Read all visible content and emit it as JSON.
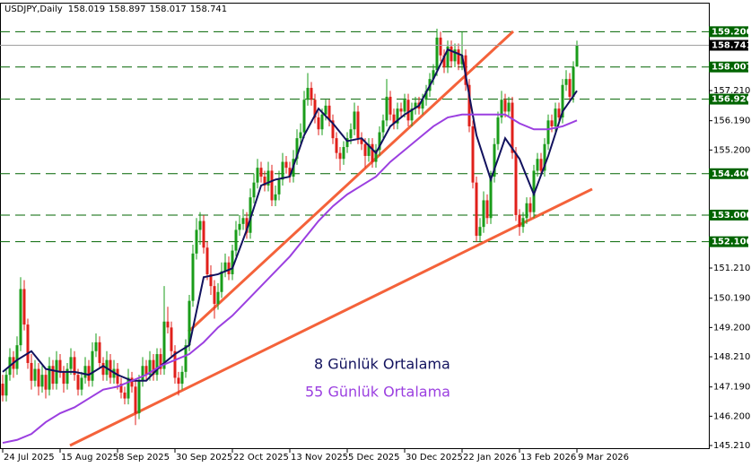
{
  "chart_data": {
    "type": "candlestick",
    "symbol": "USDJPY,Daily",
    "colors": {
      "up": "#1a9c1a",
      "down": "#e0201b",
      "level": "#006400",
      "price_line": "#a0a0a0",
      "trendline": "#f4623a"
    },
    "xlim": [
      -0.75,
      196.75
    ],
    "ylim": [
      145.12,
      160.15
    ],
    "xticks": [
      {
        "value": 0,
        "label": "24 Jul 2025"
      },
      {
        "value": 16,
        "label": "15 Aug 2025"
      },
      {
        "value": 32,
        "label": "8 Sep 2025"
      },
      {
        "value": 48,
        "label": "30 Sep 2025"
      },
      {
        "value": 64,
        "label": "22 Oct 2025"
      },
      {
        "value": 80,
        "label": "13 Nov 2025"
      },
      {
        "value": 96,
        "label": "5 Dec 2025"
      },
      {
        "value": 112,
        "label": "30 Dec 2025"
      },
      {
        "value": 128,
        "label": "22 Jan 2026"
      },
      {
        "value": 144,
        "label": "13 Feb 2026"
      },
      {
        "value": 160,
        "label": "9 Mar 2026"
      }
    ],
    "yticks": [
      {
        "value": 145.21,
        "label": "145.210"
      },
      {
        "value": 146.2,
        "label": "146.200"
      },
      {
        "value": 147.19,
        "label": "147.190"
      },
      {
        "value": 148.21,
        "label": "148.210"
      },
      {
        "value": 149.2,
        "label": "149.200"
      },
      {
        "value": 150.19,
        "label": "150.190"
      },
      {
        "value": 151.21,
        "label": "151.210"
      },
      {
        "value": 155.2,
        "label": "155.200"
      },
      {
        "value": 156.19,
        "label": "156.190"
      },
      {
        "value": 157.21,
        "label": "157.210"
      }
    ],
    "levels": [
      {
        "value": 159.2,
        "label": "159.200"
      },
      {
        "value": 158.007,
        "label": "158.007"
      },
      {
        "value": 156.92,
        "label": "156.920"
      },
      {
        "value": 154.4,
        "label": "154.400"
      },
      {
        "value": 153.0,
        "label": "153.000"
      },
      {
        "value": 152.1,
        "label": "152.100"
      }
    ],
    "trendlines": [
      {
        "x": [
          51.75,
          142.25
        ],
        "y": [
          149.06,
          159.21
        ]
      },
      {
        "x": [
          18.75,
          164.25
        ],
        "y": [
          145.21,
          153.88
        ]
      }
    ],
    "ohlc": [
      [
        147.3,
        147.6,
        146.7,
        146.9
      ],
      [
        146.9,
        147.8,
        146.7,
        147.6
      ],
      [
        147.6,
        148.5,
        147.4,
        148.2
      ],
      [
        148.2,
        148.4,
        147.5,
        147.8
      ],
      [
        147.8,
        148.9,
        147.6,
        148.6
      ],
      [
        148.6,
        150.9,
        148.4,
        150.5
      ],
      [
        150.5,
        150.8,
        149.1,
        149.3
      ],
      [
        149.3,
        149.5,
        147.8,
        148.0
      ],
      [
        148.0,
        148.3,
        147.1,
        147.4
      ],
      [
        147.4,
        148.1,
        147.2,
        147.8
      ],
      [
        147.8,
        148.0,
        146.9,
        147.2
      ],
      [
        147.2,
        147.9,
        147.0,
        147.6
      ],
      [
        147.6,
        147.8,
        146.8,
        147.1
      ],
      [
        147.1,
        148.2,
        146.9,
        147.9
      ],
      [
        147.9,
        148.1,
        147.1,
        147.3
      ],
      [
        147.3,
        148.4,
        147.1,
        148.1
      ],
      [
        148.1,
        148.3,
        147.5,
        147.7
      ],
      [
        147.7,
        147.9,
        147.0,
        147.3
      ],
      [
        147.3,
        148.0,
        147.1,
        147.8
      ],
      [
        147.8,
        148.5,
        147.6,
        148.2
      ],
      [
        148.2,
        148.4,
        147.4,
        147.6
      ],
      [
        147.6,
        147.8,
        146.9,
        147.1
      ],
      [
        147.1,
        147.7,
        146.9,
        147.5
      ],
      [
        147.5,
        148.2,
        147.3,
        147.9
      ],
      [
        147.9,
        148.1,
        147.2,
        147.4
      ],
      [
        147.4,
        148.7,
        147.2,
        148.4
      ],
      [
        148.4,
        149.0,
        148.2,
        148.7
      ],
      [
        148.7,
        148.9,
        147.8,
        148.0
      ],
      [
        148.0,
        148.2,
        147.4,
        147.6
      ],
      [
        147.6,
        148.4,
        147.4,
        148.1
      ],
      [
        148.1,
        148.3,
        147.3,
        147.5
      ],
      [
        147.5,
        148.1,
        147.3,
        147.8
      ],
      [
        147.8,
        148.0,
        147.1,
        147.3
      ],
      [
        147.3,
        147.5,
        146.8,
        147.0
      ],
      [
        147.0,
        147.2,
        146.6,
        146.8
      ],
      [
        146.8,
        147.8,
        146.6,
        147.5
      ],
      [
        147.5,
        147.7,
        147.0,
        147.2
      ],
      [
        147.2,
        147.4,
        145.9,
        146.3
      ],
      [
        146.3,
        147.6,
        146.1,
        147.4
      ],
      [
        147.4,
        148.2,
        147.2,
        147.9
      ],
      [
        147.9,
        148.1,
        147.4,
        147.6
      ],
      [
        147.6,
        148.4,
        147.4,
        148.1
      ],
      [
        148.1,
        148.3,
        147.4,
        147.6
      ],
      [
        147.6,
        148.5,
        147.4,
        148.3
      ],
      [
        148.3,
        148.5,
        147.6,
        147.8
      ],
      [
        147.8,
        150.6,
        147.6,
        149.4
      ],
      [
        149.4,
        149.9,
        149.0,
        149.2
      ],
      [
        149.2,
        149.4,
        148.2,
        148.4
      ],
      [
        148.4,
        148.6,
        147.3,
        147.5
      ],
      [
        147.5,
        147.7,
        146.9,
        147.3
      ],
      [
        147.3,
        147.9,
        147.1,
        147.7
      ],
      [
        147.7,
        148.8,
        147.5,
        148.6
      ],
      [
        148.6,
        150.3,
        148.4,
        150.1
      ],
      [
        150.1,
        152.0,
        149.9,
        151.7
      ],
      [
        151.7,
        152.9,
        151.5,
        152.5
      ],
      [
        152.5,
        153.1,
        152.0,
        152.8
      ],
      [
        152.8,
        153.0,
        151.7,
        151.9
      ],
      [
        151.9,
        152.1,
        150.8,
        151.0
      ],
      [
        151.0,
        151.3,
        150.3,
        150.6
      ],
      [
        150.6,
        150.8,
        149.5,
        150.0
      ],
      [
        150.0,
        150.7,
        149.8,
        150.4
      ],
      [
        150.4,
        151.4,
        150.2,
        151.1
      ],
      [
        151.1,
        151.7,
        150.9,
        151.4
      ],
      [
        151.4,
        151.6,
        150.8,
        151.0
      ],
      [
        151.0,
        152.0,
        150.8,
        151.8
      ],
      [
        151.8,
        152.8,
        151.6,
        152.5
      ],
      [
        152.5,
        153.0,
        152.3,
        152.7
      ],
      [
        152.7,
        153.2,
        152.5,
        152.9
      ],
      [
        152.9,
        153.1,
        152.2,
        152.4
      ],
      [
        152.4,
        153.9,
        152.2,
        153.6
      ],
      [
        153.6,
        154.4,
        153.4,
        154.1
      ],
      [
        154.1,
        154.9,
        153.9,
        154.6
      ],
      [
        154.6,
        154.8,
        154.1,
        154.3
      ],
      [
        154.3,
        154.5,
        153.8,
        154.0
      ],
      [
        154.0,
        154.8,
        153.8,
        154.5
      ],
      [
        154.5,
        154.7,
        153.3,
        153.5
      ],
      [
        153.5,
        154.0,
        153.3,
        153.7
      ],
      [
        153.7,
        154.5,
        153.5,
        154.2
      ],
      [
        154.2,
        155.1,
        154.0,
        154.8
      ],
      [
        154.8,
        155.0,
        154.4,
        154.6
      ],
      [
        154.6,
        154.8,
        154.1,
        154.3
      ],
      [
        154.3,
        155.2,
        154.1,
        154.9
      ],
      [
        154.9,
        155.9,
        154.7,
        155.6
      ],
      [
        155.6,
        156.1,
        155.4,
        155.8
      ],
      [
        155.8,
        157.2,
        155.6,
        156.9
      ],
      [
        156.9,
        157.8,
        156.7,
        157.3
      ],
      [
        157.3,
        157.5,
        156.7,
        156.9
      ],
      [
        156.9,
        157.1,
        156.1,
        156.3
      ],
      [
        156.3,
        156.5,
        155.7,
        155.9
      ],
      [
        155.9,
        156.6,
        155.7,
        156.4
      ],
      [
        156.4,
        156.9,
        156.2,
        156.7
      ],
      [
        156.7,
        156.9,
        156.0,
        156.2
      ],
      [
        156.2,
        156.4,
        155.4,
        155.6
      ],
      [
        155.6,
        155.8,
        154.9,
        155.1
      ],
      [
        155.1,
        155.3,
        154.5,
        154.9
      ],
      [
        154.9,
        155.5,
        154.7,
        155.3
      ],
      [
        155.3,
        155.8,
        155.1,
        155.6
      ],
      [
        155.6,
        156.1,
        155.4,
        155.9
      ],
      [
        155.9,
        156.8,
        155.7,
        156.5
      ],
      [
        156.5,
        156.7,
        155.4,
        155.6
      ],
      [
        155.6,
        155.8,
        155.2,
        155.4
      ],
      [
        155.4,
        155.6,
        154.6,
        155.0
      ],
      [
        155.0,
        155.6,
        154.8,
        155.4
      ],
      [
        155.4,
        155.6,
        154.6,
        154.8
      ],
      [
        154.8,
        155.4,
        154.6,
        155.2
      ],
      [
        155.2,
        156.0,
        155.0,
        155.8
      ],
      [
        155.8,
        156.4,
        155.6,
        156.2
      ],
      [
        156.2,
        157.6,
        156.0,
        157.0
      ],
      [
        157.0,
        157.2,
        156.2,
        156.4
      ],
      [
        156.4,
        156.6,
        155.9,
        156.1
      ],
      [
        156.1,
        156.8,
        155.9,
        156.6
      ],
      [
        156.6,
        156.8,
        156.3,
        156.5
      ],
      [
        156.5,
        157.1,
        156.3,
        156.9
      ],
      [
        156.9,
        157.1,
        156.0,
        156.2
      ],
      [
        156.2,
        156.8,
        156.0,
        156.6
      ],
      [
        156.6,
        157.0,
        156.4,
        156.8
      ],
      [
        156.8,
        157.0,
        156.4,
        156.6
      ],
      [
        156.6,
        157.1,
        156.4,
        156.9
      ],
      [
        156.9,
        157.4,
        156.7,
        157.2
      ],
      [
        157.2,
        157.8,
        157.0,
        157.6
      ],
      [
        157.6,
        158.1,
        157.4,
        157.9
      ],
      [
        157.9,
        159.3,
        157.7,
        159.0
      ],
      [
        159.0,
        159.2,
        158.2,
        158.4
      ],
      [
        158.4,
        158.6,
        157.8,
        158.0
      ],
      [
        158.0,
        158.9,
        157.8,
        158.7
      ],
      [
        158.7,
        158.9,
        158.0,
        158.2
      ],
      [
        158.2,
        158.8,
        158.0,
        158.6
      ],
      [
        158.6,
        158.8,
        157.9,
        158.1
      ],
      [
        158.1,
        159.2,
        157.9,
        158.4
      ],
      [
        158.4,
        158.6,
        157.2,
        157.4
      ],
      [
        157.4,
        157.6,
        155.8,
        156.0
      ],
      [
        156.0,
        156.2,
        153.9,
        154.1
      ],
      [
        154.1,
        154.3,
        152.1,
        152.3
      ],
      [
        152.3,
        152.9,
        152.1,
        152.6
      ],
      [
        152.6,
        153.8,
        152.4,
        153.5
      ],
      [
        153.5,
        153.7,
        152.7,
        152.9
      ],
      [
        152.9,
        154.5,
        152.7,
        154.3
      ],
      [
        154.3,
        155.6,
        154.1,
        155.4
      ],
      [
        155.4,
        156.5,
        155.2,
        156.3
      ],
      [
        156.3,
        157.2,
        156.1,
        156.9
      ],
      [
        156.9,
        157.1,
        156.3,
        156.5
      ],
      [
        156.5,
        157.0,
        156.3,
        156.8
      ],
      [
        156.8,
        157.0,
        154.9,
        155.1
      ],
      [
        155.1,
        155.3,
        152.8,
        153.0
      ],
      [
        153.0,
        153.2,
        152.3,
        152.6
      ],
      [
        152.6,
        153.1,
        152.4,
        152.9
      ],
      [
        152.9,
        153.6,
        152.7,
        153.4
      ],
      [
        153.4,
        153.6,
        152.9,
        153.1
      ],
      [
        153.1,
        154.7,
        152.9,
        154.5
      ],
      [
        154.5,
        155.1,
        154.3,
        154.9
      ],
      [
        154.9,
        155.1,
        154.3,
        154.5
      ],
      [
        154.5,
        155.6,
        154.3,
        155.4
      ],
      [
        155.4,
        156.4,
        155.2,
        156.2
      ],
      [
        156.2,
        156.4,
        155.8,
        156.0
      ],
      [
        156.0,
        156.8,
        155.8,
        156.6
      ],
      [
        156.6,
        156.8,
        156.1,
        156.3
      ],
      [
        156.3,
        157.6,
        156.1,
        157.4
      ],
      [
        157.4,
        157.9,
        157.2,
        157.6
      ],
      [
        157.6,
        157.8,
        156.8,
        157.0
      ],
      [
        157.0,
        158.2,
        156.8,
        158.0
      ],
      [
        158.019,
        158.897,
        158.017,
        158.741
      ]
    ],
    "series": [
      {
        "name": "8 Günlük Ortalama",
        "color": "#12125e",
        "x": [
          0,
          4,
          8,
          12,
          16,
          20,
          24,
          28,
          32,
          36,
          40,
          44,
          48,
          52,
          56,
          60,
          64,
          68,
          72,
          76,
          80,
          84,
          88,
          92,
          96,
          100,
          104,
          108,
          112,
          116,
          120,
          124,
          128,
          132,
          136,
          140,
          144,
          148,
          152,
          156,
          160
        ],
        "values": [
          147.7,
          148.1,
          148.4,
          147.8,
          147.7,
          147.7,
          147.6,
          147.9,
          147.6,
          147.4,
          147.4,
          147.9,
          148.3,
          148.6,
          150.9,
          151.0,
          151.2,
          152.5,
          154.0,
          154.2,
          154.3,
          155.7,
          156.6,
          156.1,
          155.5,
          155.6,
          155.1,
          156.0,
          156.4,
          156.7,
          157.6,
          158.6,
          158.4,
          155.7,
          154.2,
          155.6,
          154.9,
          153.7,
          155.0,
          156.5,
          157.2
        ]
      },
      {
        "name": "55 Günlük Ortalama",
        "color": "#9b3fe0",
        "x": [
          0,
          4,
          8,
          12,
          16,
          20,
          24,
          28,
          32,
          36,
          40,
          44,
          48,
          52,
          56,
          60,
          64,
          68,
          72,
          76,
          80,
          84,
          88,
          92,
          96,
          100,
          104,
          108,
          112,
          116,
          120,
          124,
          128,
          132,
          136,
          140,
          144,
          148,
          152,
          156,
          160
        ],
        "values": [
          145.3,
          145.4,
          145.6,
          146.0,
          146.3,
          146.5,
          146.8,
          147.1,
          147.2,
          147.4,
          147.6,
          147.9,
          148.1,
          148.3,
          148.7,
          149.2,
          149.6,
          150.1,
          150.6,
          151.1,
          151.6,
          152.2,
          152.8,
          153.3,
          153.7,
          154.0,
          154.3,
          154.8,
          155.2,
          155.6,
          156.0,
          156.3,
          156.4,
          156.4,
          156.4,
          156.4,
          156.1,
          155.9,
          155.9,
          156.0,
          156.2
        ]
      }
    ]
  }
}
